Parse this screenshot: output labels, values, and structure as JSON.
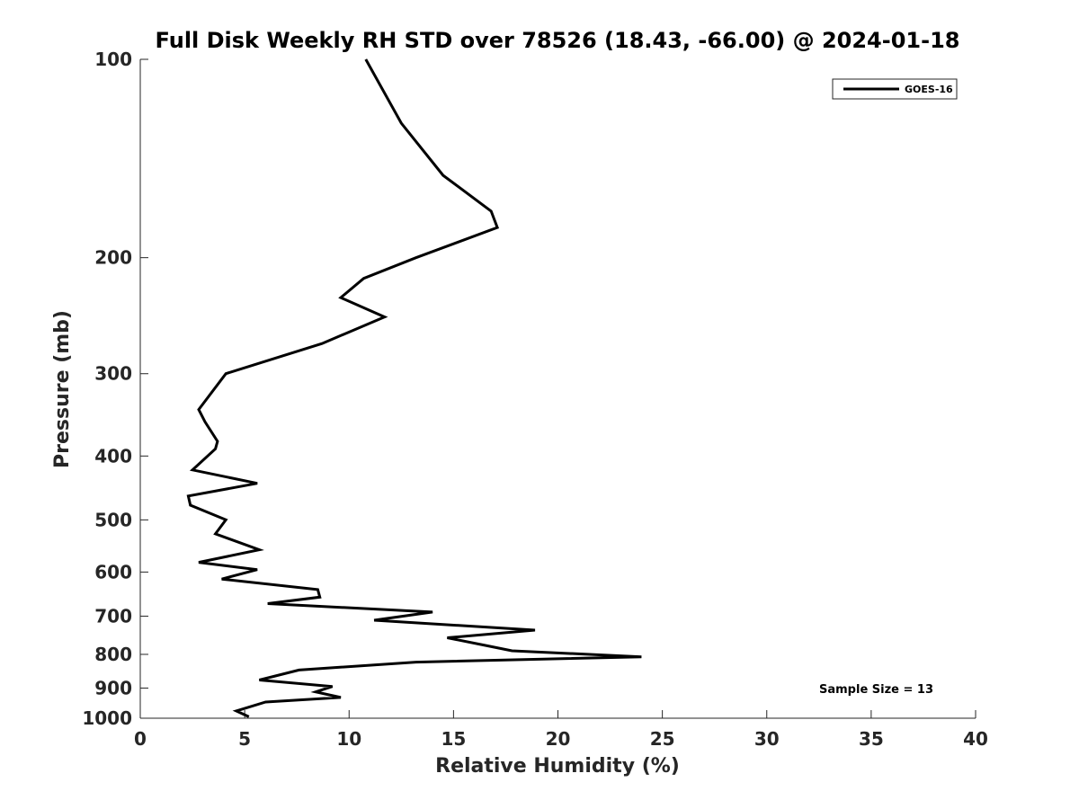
{
  "chart_data": {
    "type": "line",
    "title": "Full Disk Weekly RH STD over 78526 (18.43, -66.00) @ 2024-01-18",
    "xlabel": "Relative Humidity (%)",
    "ylabel": "Pressure (mb)",
    "xlim": [
      0,
      40
    ],
    "ylim": [
      100,
      1000
    ],
    "yscale": "log",
    "y_reversed": true,
    "x_ticks": [
      0,
      5,
      10,
      15,
      20,
      25,
      30,
      35,
      40
    ],
    "y_ticks": [
      100,
      200,
      300,
      400,
      500,
      600,
      700,
      800,
      900,
      1000
    ],
    "legend": {
      "entries": [
        "GOES-16"
      ],
      "placement": "top-right"
    },
    "annotation": "Sample Size = 13",
    "series": [
      {
        "name": "GOES-16",
        "color": "#000000",
        "points": [
          [
            10.8,
            100
          ],
          [
            12.5,
            125
          ],
          [
            14.5,
            150
          ],
          [
            16.8,
            170
          ],
          [
            17.1,
            180
          ],
          [
            13.2,
            200
          ],
          [
            10.7,
            215
          ],
          [
            9.6,
            230
          ],
          [
            11.7,
            246
          ],
          [
            8.7,
            270
          ],
          [
            4.1,
            300
          ],
          [
            2.8,
            340
          ],
          [
            3.1,
            355
          ],
          [
            3.7,
            380
          ],
          [
            3.6,
            390
          ],
          [
            2.5,
            420
          ],
          [
            5.6,
            440
          ],
          [
            2.3,
            460
          ],
          [
            2.4,
            475
          ],
          [
            4.1,
            500
          ],
          [
            3.6,
            525
          ],
          [
            5.7,
            555
          ],
          [
            2.8,
            580
          ],
          [
            5.6,
            595
          ],
          [
            3.9,
            615
          ],
          [
            8.5,
            638
          ],
          [
            8.6,
            655
          ],
          [
            6.1,
            670
          ],
          [
            14.0,
            690
          ],
          [
            11.2,
            710
          ],
          [
            18.9,
            735
          ],
          [
            14.7,
            755
          ],
          [
            16.5,
            775
          ],
          [
            17.8,
            790
          ],
          [
            24.0,
            807
          ],
          [
            13.2,
            822
          ],
          [
            7.6,
            845
          ],
          [
            5.7,
            875
          ],
          [
            9.2,
            895
          ],
          [
            8.4,
            912
          ],
          [
            9.6,
            930
          ],
          [
            6.0,
            945
          ],
          [
            4.6,
            975
          ],
          [
            5.2,
            995
          ]
        ]
      }
    ]
  }
}
